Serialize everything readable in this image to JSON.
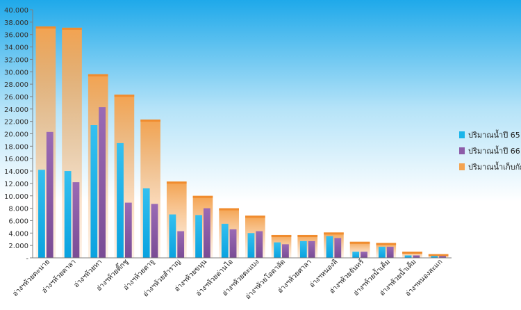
{
  "chart_data": {
    "type": "bar",
    "title": "",
    "xlabel": "",
    "ylabel": "",
    "ylim": [
      0,
      40000
    ],
    "ytick_step": 2000,
    "ytick_labels": [
      "-",
      "2.000",
      "4.000",
      "6.000",
      "8.000",
      "10.000",
      "12.000",
      "14.000",
      "16.000",
      "18.000",
      "20.000",
      "22.000",
      "24.000",
      "26.000",
      "28.000",
      "30.000",
      "32.000",
      "34.000",
      "36.000",
      "38.000",
      "40.000"
    ],
    "grid": false,
    "legend_position": "right",
    "categories": [
      "อ่างฯห้วยตะนาย",
      "อ่างฯห้วยตาลา",
      "อ่างฯห้วยทา",
      "อ่างฯห้วยติ๊กชู",
      "อ่างฯห้วยตาจู",
      "อ่างฯห้วยสำราญ",
      "อ่างฯห้วยขนุน",
      "อ่างฯห้วยด่านไอ",
      "อ่างฯห้วยตะแบง",
      "อ่างฯห้วยโอตาลัด",
      "อ่างฯห้วยศาลา",
      "อ่างฯหนองลิ",
      "อ่างฯห้วยจันทร์",
      "อ่างฯห้วยน้ำเค็ม",
      "อ่างฯห้วยน้ำเค็ม",
      "อ่างฯหนองสะแก"
    ],
    "series": [
      {
        "name": "ปริมาณน้ำปี 65",
        "values": [
          14200,
          14000,
          21400,
          18500,
          11200,
          7000,
          6900,
          5500,
          4000,
          2500,
          2700,
          3500,
          1000,
          1800,
          400,
          300
        ],
        "color": "#1ab5ea"
      },
      {
        "name": "ปริมาณน้ำปี 66",
        "values": [
          20300,
          12200,
          24300,
          8900,
          8700,
          4300,
          8000,
          4600,
          4300,
          2200,
          2700,
          3200,
          1000,
          1800,
          400,
          300
        ],
        "color": "#8d5ca8"
      },
      {
        "name": "ปริมาณน้ำเก็บกัก",
        "values": [
          37300,
          37100,
          29600,
          26300,
          22300,
          12300,
          10000,
          8000,
          6800,
          3700,
          3700,
          4100,
          2600,
          2400,
          1000,
          600
        ],
        "color": "#f4a350"
      }
    ]
  }
}
